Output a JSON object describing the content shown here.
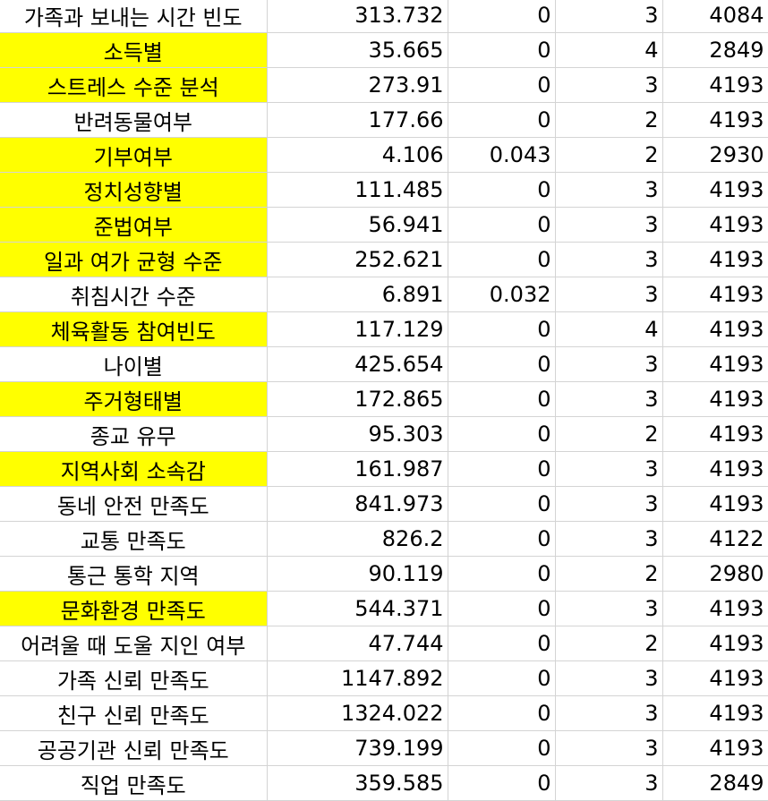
{
  "sheet": {
    "highlight_color": "#ffff00",
    "rows": [
      {
        "name": "가족과 보내는 시간 빈도",
        "v1": "313.732",
        "v2": "0",
        "v3": "3",
        "v4": "4084",
        "highlighted": false
      },
      {
        "name": "소득별",
        "v1": "35.665",
        "v2": "0",
        "v3": "4",
        "v4": "2849",
        "highlighted": true
      },
      {
        "name": "스트레스 수준 분석",
        "v1": "273.91",
        "v2": "0",
        "v3": "3",
        "v4": "4193",
        "highlighted": true
      },
      {
        "name": "반려동물여부",
        "v1": "177.66",
        "v2": "0",
        "v3": "2",
        "v4": "4193",
        "highlighted": false
      },
      {
        "name": "기부여부",
        "v1": "4.106",
        "v2": "0.043",
        "v3": "2",
        "v4": "2930",
        "highlighted": true
      },
      {
        "name": "정치성향별",
        "v1": "111.485",
        "v2": "0",
        "v3": "3",
        "v4": "4193",
        "highlighted": true
      },
      {
        "name": "준법여부",
        "v1": "56.941",
        "v2": "0",
        "v3": "3",
        "v4": "4193",
        "highlighted": true
      },
      {
        "name": "일과 여가 균형 수준",
        "v1": "252.621",
        "v2": "0",
        "v3": "3",
        "v4": "4193",
        "highlighted": true
      },
      {
        "name": "취침시간 수준",
        "v1": "6.891",
        "v2": "0.032",
        "v3": "3",
        "v4": "4193",
        "highlighted": false
      },
      {
        "name": "체육활동 참여빈도",
        "v1": "117.129",
        "v2": "0",
        "v3": "4",
        "v4": "4193",
        "highlighted": true
      },
      {
        "name": "나이별",
        "v1": "425.654",
        "v2": "0",
        "v3": "3",
        "v4": "4193",
        "highlighted": false
      },
      {
        "name": "주거형태별",
        "v1": "172.865",
        "v2": "0",
        "v3": "3",
        "v4": "4193",
        "highlighted": true
      },
      {
        "name": "종교 유무",
        "v1": "95.303",
        "v2": "0",
        "v3": "2",
        "v4": "4193",
        "highlighted": false
      },
      {
        "name": "지역사회 소속감",
        "v1": "161.987",
        "v2": "0",
        "v3": "3",
        "v4": "4193",
        "highlighted": true
      },
      {
        "name": "동네 안전 만족도",
        "v1": "841.973",
        "v2": "0",
        "v3": "3",
        "v4": "4193",
        "highlighted": false
      },
      {
        "name": "교통 만족도",
        "v1": "826.2",
        "v2": "0",
        "v3": "3",
        "v4": "4122",
        "highlighted": false
      },
      {
        "name": "통근 통학 지역",
        "v1": "90.119",
        "v2": "0",
        "v3": "2",
        "v4": "2980",
        "highlighted": false
      },
      {
        "name": "문화환경 만족도",
        "v1": "544.371",
        "v2": "0",
        "v3": "3",
        "v4": "4193",
        "highlighted": true
      },
      {
        "name": "어려울 때 도울 지인 여부",
        "v1": "47.744",
        "v2": "0",
        "v3": "2",
        "v4": "4193",
        "highlighted": false
      },
      {
        "name": "가족 신뢰 만족도",
        "v1": "1147.892",
        "v2": "0",
        "v3": "3",
        "v4": "4193",
        "highlighted": false
      },
      {
        "name": "친구 신뢰 만족도",
        "v1": "1324.022",
        "v2": "0",
        "v3": "3",
        "v4": "4193",
        "highlighted": false
      },
      {
        "name": "공공기관 신뢰 만족도",
        "v1": "739.199",
        "v2": "0",
        "v3": "3",
        "v4": "4193",
        "highlighted": false
      },
      {
        "name": "직업 만족도",
        "v1": "359.585",
        "v2": "0",
        "v3": "3",
        "v4": "2849",
        "highlighted": false
      }
    ]
  }
}
